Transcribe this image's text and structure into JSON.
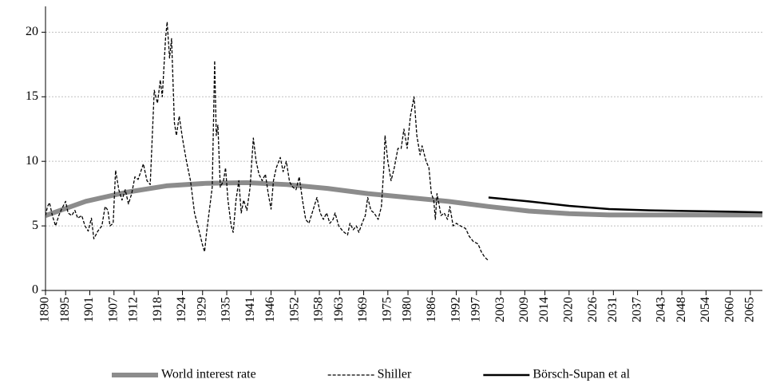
{
  "chart_data": {
    "type": "line",
    "xlim": [
      1890,
      2068
    ],
    "ylim": [
      0,
      22
    ],
    "yticks": [
      0,
      5,
      10,
      15,
      20
    ],
    "xticks": [
      1890,
      1895,
      1901,
      1907,
      1912,
      1918,
      1924,
      1929,
      1935,
      1941,
      1946,
      1952,
      1958,
      1963,
      1969,
      1975,
      1980,
      1986,
      1992,
      1997,
      2003,
      2009,
      2014,
      2020,
      2026,
      2031,
      2037,
      2043,
      2048,
      2054,
      2060,
      2065
    ],
    "grid": true,
    "legend": "bottom",
    "series": [
      {
        "name": "World interest rate",
        "color": "#8c8c8c",
        "width": 6,
        "dash": "solid",
        "x": [
          1890,
          1900,
          1910,
          1920,
          1930,
          1940,
          1950,
          1960,
          1970,
          1980,
          1990,
          2000,
          2010,
          2020,
          2030,
          2040,
          2050,
          2060,
          2068
        ],
        "values": [
          5.8,
          6.9,
          7.6,
          8.1,
          8.3,
          8.35,
          8.2,
          7.9,
          7.5,
          7.2,
          6.9,
          6.5,
          6.15,
          5.95,
          5.85,
          5.85,
          5.85,
          5.85,
          5.85
        ]
      },
      {
        "name": "Shiller",
        "color": "#000000",
        "width": 1.3,
        "dash": "dashed",
        "x": [
          1890,
          1890.5,
          1891,
          1891.7,
          1892.5,
          1893.3,
          1894,
          1895,
          1895.6,
          1896.5,
          1897.3,
          1898,
          1899,
          1899.8,
          1900.6,
          1901.4,
          1902,
          1903,
          1904,
          1904.8,
          1905.5,
          1906,
          1906.8,
          1907.4,
          1908.2,
          1909,
          1909.8,
          1910.6,
          1911.4,
          1912.2,
          1913,
          1914.3,
          1915.2,
          1916,
          1917,
          1917.8,
          1918.5,
          1919,
          1919.8,
          1920.2,
          1920.8,
          1921.3,
          1922,
          1922.5,
          1923.2,
          1924,
          1925,
          1926,
          1927,
          1928,
          1929,
          1929.5,
          1930,
          1930.8,
          1931.4,
          1932,
          1932.4,
          1932.8,
          1933.4,
          1934.2,
          1934.7,
          1935.3,
          1936.1,
          1936.6,
          1937.3,
          1938,
          1938.6,
          1939.2,
          1940,
          1940.8,
          1941.6,
          1942.3,
          1943,
          1943.8,
          1944.6,
          1945.3,
          1946,
          1946.6,
          1947.3,
          1948.3,
          1949,
          1949.8,
          1950.6,
          1951.4,
          1952.2,
          1953,
          1953.8,
          1954.6,
          1955.4,
          1956.2,
          1957.4,
          1958.2,
          1959,
          1959.8,
          1960.6,
          1961.4,
          1961.9,
          1962.8,
          1963.8,
          1965,
          1965.6,
          1966.4,
          1967.2,
          1967.8,
          1968.6,
          1969.4,
          1970,
          1970.8,
          1971.6,
          1972.6,
          1973.4,
          1974,
          1974.3,
          1975,
          1975.8,
          1976.6,
          1977.5,
          1978.3,
          1979,
          1979.8,
          1980.6,
          1981.5,
          1982.2,
          1983,
          1983.5,
          1984.5,
          1985.2,
          1985.8,
          1986.4,
          1986.8,
          1987.2,
          1987.8,
          1988.2,
          1989,
          1989.8,
          1990.4,
          1991.2,
          1992,
          1993,
          1994.3,
          1995.2,
          1996.2,
          1997.4,
          1998.2,
          1999,
          2000
        ],
        "values": [
          5.8,
          6.5,
          6.8,
          5.8,
          5.0,
          5.8,
          6.3,
          6.9,
          6.0,
          5.8,
          6.2,
          5.6,
          5.8,
          5.0,
          4.6,
          5.6,
          4.0,
          4.6,
          5.0,
          6.5,
          6.2,
          5.0,
          5.2,
          9.3,
          7.8,
          7.0,
          7.8,
          6.7,
          7.5,
          8.8,
          8.6,
          9.8,
          8.5,
          8.2,
          15.5,
          14.5,
          16.3,
          15.0,
          19.5,
          20.8,
          18.0,
          19.5,
          13.0,
          12.0,
          13.5,
          11.8,
          10.0,
          8.5,
          6.0,
          4.8,
          3.5,
          3.0,
          4.5,
          6.5,
          8.0,
          17.8,
          12.0,
          12.8,
          8.0,
          8.5,
          9.5,
          7.0,
          5.0,
          4.5,
          7.0,
          8.5,
          6.0,
          7.0,
          6.2,
          8.0,
          11.8,
          10.0,
          9.0,
          8.5,
          9.0,
          7.5,
          6.3,
          8.5,
          9.5,
          10.3,
          9.2,
          10.0,
          8.4,
          8.0,
          7.8,
          8.8,
          7.0,
          5.5,
          5.2,
          6.0,
          7.2,
          6.0,
          5.5,
          6.0,
          5.2,
          5.5,
          6.0,
          5.0,
          4.6,
          4.3,
          5.2,
          4.7,
          5.0,
          4.5,
          5.2,
          5.8,
          7.2,
          6.2,
          6.0,
          5.5,
          6.5,
          9.5,
          12.0,
          10.0,
          8.5,
          9.5,
          11.0,
          11.0,
          12.5,
          11.0,
          13.5,
          15.0,
          12.0,
          10.5,
          11.2,
          10.0,
          9.5,
          7.5,
          7.0,
          5.5,
          7.5,
          6.5,
          5.8,
          6.0,
          5.5,
          6.5,
          5.0,
          5.2,
          5.0,
          4.8,
          4.2,
          3.8,
          3.6,
          3.0,
          2.6,
          2.3
        ]
      },
      {
        "name": "Börsch-Supan et al",
        "color": "#000000",
        "width": 2.5,
        "dash": "solid",
        "x": [
          2000,
          2010,
          2020,
          2030,
          2040,
          2050,
          2060,
          2068
        ],
        "values": [
          7.2,
          6.9,
          6.55,
          6.3,
          6.2,
          6.15,
          6.1,
          6.05
        ]
      }
    ]
  }
}
